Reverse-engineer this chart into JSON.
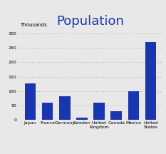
{
  "title": "Population",
  "ylabel": "Thousands",
  "categories": [
    "Japan",
    "France",
    "Germany",
    "Sweden",
    "United\nKingdom",
    "Canada",
    "Mexico",
    "United\nStates"
  ],
  "values": [
    127,
    60,
    82,
    9,
    60,
    32,
    100,
    270
  ],
  "bar_color": "#1a35b0",
  "ylim": [
    0,
    320
  ],
  "yticks": [
    0,
    50,
    100,
    150,
    200,
    250,
    300
  ],
  "title_color": "#1a35b0",
  "title_fontsize": 13,
  "ylabel_fontsize": 5,
  "tick_fontsize": 4.5,
  "background_color": "#e8e8e8",
  "grid_color": "#999999"
}
